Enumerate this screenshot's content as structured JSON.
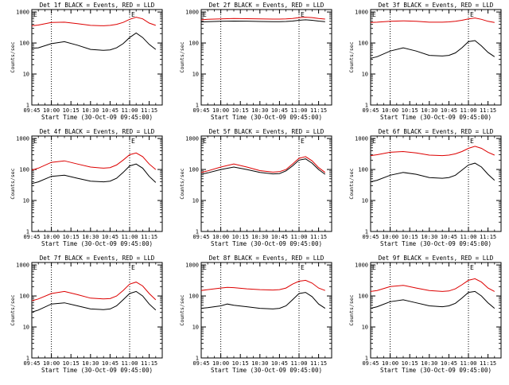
{
  "colors": {
    "events": "#000000",
    "lld": "#dd0000",
    "axis": "#000000",
    "background": "#ffffff"
  },
  "common": {
    "xlabel": "Start Time (30-Oct-09 09:45:00)",
    "ylabel": "Counts/sec",
    "x_ticks": [
      "09:45",
      "10:00",
      "10:15",
      "10:30",
      "10:45",
      "11:00",
      "11:15"
    ],
    "y_ticks": [
      "1",
      "10",
      "100",
      "1000"
    ],
    "y_scale": "log",
    "ylim": [
      1,
      1200
    ],
    "xlim": [
      "09:45",
      "11:25"
    ],
    "e_marker": "E",
    "vline_times": [
      "10:00",
      "11:00"
    ]
  },
  "chart_data": [
    {
      "type": "line",
      "title": "Det 1f BLACK = Events, RED = LLD",
      "x": [
        "09:45",
        "09:50",
        "10:00",
        "10:10",
        "10:20",
        "10:30",
        "10:40",
        "10:45",
        "10:50",
        "10:55",
        "11:00",
        "11:05",
        "11:10",
        "11:15",
        "11:20"
      ],
      "series": [
        {
          "name": "Events",
          "values": [
            68,
            70,
            95,
            110,
            85,
            62,
            58,
            60,
            70,
            95,
            150,
            210,
            150,
            90,
            62
          ]
        },
        {
          "name": "LLD",
          "values": [
            360,
            380,
            460,
            470,
            420,
            370,
            360,
            370,
            400,
            460,
            580,
            680,
            600,
            440,
            370
          ]
        }
      ]
    },
    {
      "type": "line",
      "title": "Det 2f BLACK = Events, RED = LLD",
      "x": [
        "09:45",
        "09:50",
        "10:00",
        "10:10",
        "10:20",
        "10:30",
        "10:40",
        "10:45",
        "10:50",
        "10:55",
        "11:00",
        "11:05",
        "11:10",
        "11:15",
        "11:20"
      ],
      "series": [
        {
          "name": "Events",
          "values": [
            480,
            490,
            500,
            510,
            505,
            495,
            490,
            490,
            495,
            510,
            540,
            560,
            540,
            510,
            490
          ]
        },
        {
          "name": "LLD",
          "values": [
            560,
            580,
            600,
            620,
            610,
            600,
            590,
            590,
            600,
            620,
            660,
            680,
            660,
            620,
            590
          ]
        }
      ]
    },
    {
      "type": "line",
      "title": "Det 3f BLACK = Events, RED = LLD",
      "x": [
        "09:45",
        "09:50",
        "10:00",
        "10:10",
        "10:20",
        "10:30",
        "10:40",
        "10:45",
        "10:50",
        "10:55",
        "11:00",
        "11:05",
        "11:10",
        "11:15",
        "11:20"
      ],
      "series": [
        {
          "name": "Events",
          "values": [
            32,
            36,
            55,
            70,
            55,
            40,
            38,
            40,
            48,
            70,
            110,
            120,
            80,
            50,
            36
          ]
        },
        {
          "name": "LLD",
          "values": [
            460,
            470,
            500,
            520,
            500,
            470,
            470,
            480,
            500,
            540,
            600,
            640,
            580,
            500,
            460
          ]
        }
      ]
    },
    {
      "type": "line",
      "title": "Det 4f BLACK = Events, RED = LLD",
      "x": [
        "09:45",
        "09:50",
        "10:00",
        "10:10",
        "10:20",
        "10:30",
        "10:40",
        "10:45",
        "10:50",
        "10:55",
        "11:00",
        "11:05",
        "11:10",
        "11:15",
        "11:20"
      ],
      "series": [
        {
          "name": "Events",
          "values": [
            35,
            40,
            60,
            65,
            52,
            42,
            40,
            42,
            52,
            80,
            130,
            150,
            110,
            60,
            38
          ]
        },
        {
          "name": "LLD",
          "values": [
            95,
            110,
            170,
            190,
            150,
            120,
            110,
            115,
            140,
            200,
            300,
            340,
            260,
            150,
            100
          ]
        }
      ]
    },
    {
      "type": "line",
      "title": "Det 5f BLACK = Events, RED = LLD",
      "x": [
        "09:45",
        "09:50",
        "10:00",
        "10:10",
        "10:20",
        "10:30",
        "10:40",
        "10:45",
        "10:50",
        "10:55",
        "11:00",
        "11:05",
        "11:10",
        "11:15",
        "11:20"
      ],
      "series": [
        {
          "name": "Events",
          "values": [
            70,
            78,
            100,
            120,
            100,
            80,
            72,
            74,
            90,
            130,
            200,
            220,
            160,
            100,
            70
          ]
        },
        {
          "name": "LLD",
          "values": [
            80,
            90,
            120,
            150,
            120,
            92,
            82,
            85,
            100,
            150,
            230,
            260,
            190,
            115,
            80
          ]
        }
      ]
    },
    {
      "type": "line",
      "title": "Det 6f BLACK = Events, RED = LLD",
      "x": [
        "09:45",
        "09:50",
        "10:00",
        "10:10",
        "10:20",
        "10:30",
        "10:40",
        "10:45",
        "10:50",
        "10:55",
        "11:00",
        "11:05",
        "11:10",
        "11:15",
        "11:20"
      ],
      "series": [
        {
          "name": "Events",
          "values": [
            40,
            45,
            65,
            80,
            70,
            55,
            52,
            55,
            65,
            95,
            140,
            160,
            120,
            70,
            45
          ]
        },
        {
          "name": "LLD",
          "values": [
            280,
            300,
            360,
            380,
            340,
            290,
            280,
            290,
            320,
            380,
            480,
            560,
            480,
            360,
            290
          ]
        }
      ]
    },
    {
      "type": "line",
      "title": "Det 7f BLACK = Events, RED = LLD",
      "x": [
        "09:45",
        "09:50",
        "10:00",
        "10:10",
        "10:20",
        "10:30",
        "10:40",
        "10:45",
        "10:50",
        "10:55",
        "11:00",
        "11:05",
        "11:10",
        "11:15",
        "11:20"
      ],
      "series": [
        {
          "name": "Events",
          "values": [
            30,
            35,
            55,
            60,
            48,
            38,
            36,
            38,
            48,
            75,
            120,
            140,
            100,
            55,
            35
          ]
        },
        {
          "name": "LLD",
          "values": [
            70,
            80,
            120,
            140,
            110,
            85,
            80,
            82,
            100,
            150,
            240,
            280,
            210,
            120,
            75
          ]
        }
      ]
    },
    {
      "type": "line",
      "title": "Det 8f BLACK = Events, RED = LLD",
      "x": [
        "09:45",
        "09:50",
        "10:00",
        "10:05",
        "10:10",
        "10:20",
        "10:30",
        "10:40",
        "10:45",
        "10:50",
        "10:55",
        "11:00",
        "11:05",
        "11:10",
        "11:15",
        "11:20"
      ],
      "series": [
        {
          "name": "Events",
          "values": [
            40,
            42,
            48,
            55,
            50,
            45,
            40,
            38,
            40,
            48,
            75,
            120,
            130,
            95,
            55,
            40
          ]
        },
        {
          "name": "LLD",
          "values": [
            150,
            160,
            180,
            190,
            185,
            170,
            160,
            155,
            160,
            180,
            240,
            300,
            320,
            260,
            180,
            150
          ]
        }
      ]
    },
    {
      "type": "line",
      "title": "Det 9f BLACK = Events, RED = LLD",
      "x": [
        "09:45",
        "09:50",
        "10:00",
        "10:10",
        "10:20",
        "10:30",
        "10:40",
        "10:45",
        "10:50",
        "10:55",
        "11:00",
        "11:05",
        "11:10",
        "11:15",
        "11:20"
      ],
      "series": [
        {
          "name": "Events",
          "values": [
            40,
            45,
            65,
            75,
            60,
            48,
            45,
            48,
            58,
            85,
            130,
            140,
            100,
            60,
            40
          ]
        },
        {
          "name": "LLD",
          "values": [
            140,
            150,
            200,
            220,
            180,
            150,
            140,
            145,
            170,
            230,
            320,
            360,
            280,
            180,
            140
          ]
        }
      ]
    }
  ]
}
